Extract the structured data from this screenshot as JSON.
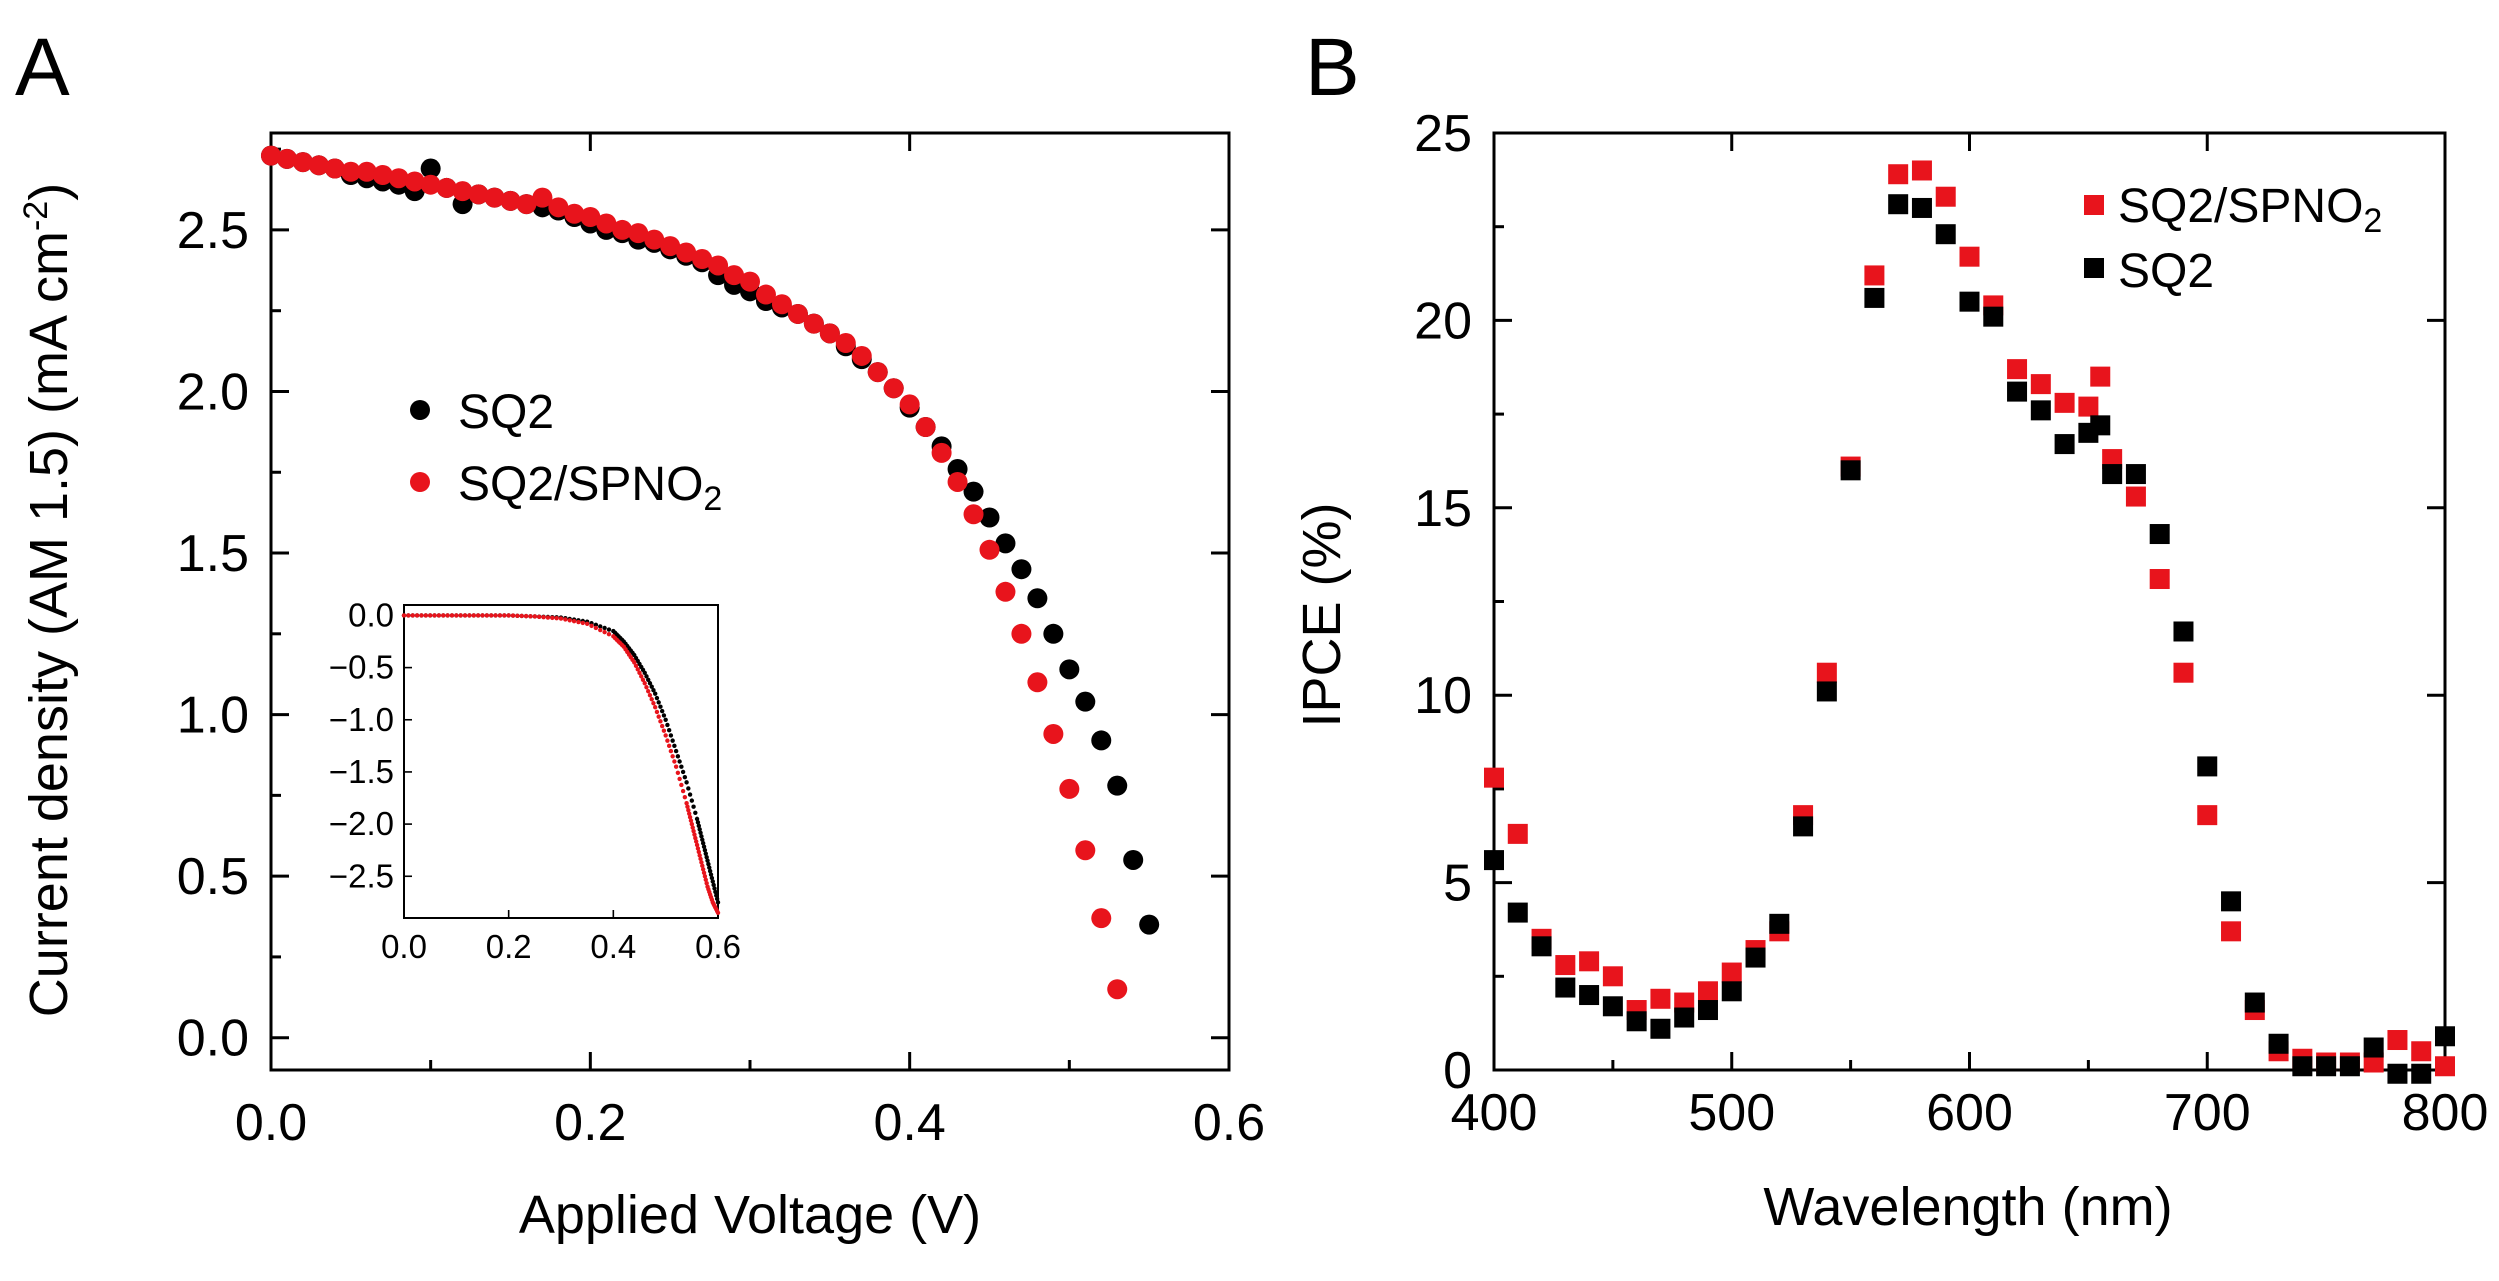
{
  "panels": [
    {
      "letter": "A"
    },
    {
      "letter": "B"
    }
  ],
  "legendA": {
    "sq2": "SQ2",
    "sq2spno2_prefix": "SQ2/SPNO",
    "sub": "2"
  },
  "legendB": {
    "sq2spno2_prefix": "SQ2/SPNO",
    "sub": "2",
    "sq2": "SQ2"
  },
  "labels": {
    "A_x": "Applied Voltage (V)",
    "A_y_prefix": "Current density (AM 1.5) (mA cm",
    "A_y_sup": "-2",
    "A_y_suffix": ")",
    "B_x": "Wavelength (nm)",
    "B_y": "IPCE (%)"
  },
  "colors": {
    "red": "#e8141c",
    "black": "#000000"
  },
  "chart_data": [
    {
      "type": "scatter",
      "panel": "A",
      "xlabel": "Applied Voltage (V)",
      "ylabel": "Current density (AM 1.5) (mA cm-2)",
      "xlim": [
        0,
        0.6
      ],
      "ylim": [
        -0.1,
        2.8
      ],
      "xticks": [
        0.0,
        0.2,
        0.4,
        0.6
      ],
      "xtick_labels": [
        "0.0",
        "0.2",
        "0.4",
        "0.6"
      ],
      "yticks": [
        0.0,
        0.5,
        1.0,
        1.5,
        2.0,
        2.5
      ],
      "ytick_labels": [
        "0.0",
        "0.5",
        "1.0",
        "1.5",
        "2.0",
        "2.5"
      ],
      "legend": [
        "SQ2",
        "SQ2/SPNO2"
      ],
      "series": [
        {
          "name": "SQ2",
          "color": "#000000",
          "x": [
            0.0,
            0.01,
            0.02,
            0.03,
            0.04,
            0.05,
            0.06,
            0.07,
            0.08,
            0.09,
            0.1,
            0.11,
            0.12,
            0.13,
            0.14,
            0.15,
            0.16,
            0.17,
            0.18,
            0.19,
            0.2,
            0.21,
            0.22,
            0.23,
            0.24,
            0.25,
            0.26,
            0.27,
            0.28,
            0.29,
            0.3,
            0.31,
            0.32,
            0.33,
            0.34,
            0.35,
            0.36,
            0.37,
            0.38,
            0.39,
            0.4,
            0.41,
            0.42,
            0.43,
            0.44,
            0.45,
            0.46,
            0.47,
            0.48,
            0.49,
            0.5,
            0.51,
            0.52,
            0.53,
            0.54,
            0.55
          ],
          "y": [
            2.73,
            2.72,
            2.71,
            2.7,
            2.69,
            2.67,
            2.66,
            2.65,
            2.64,
            2.62,
            2.69,
            2.63,
            2.58,
            2.61,
            2.6,
            2.59,
            2.58,
            2.57,
            2.56,
            2.54,
            2.52,
            2.5,
            2.49,
            2.47,
            2.46,
            2.44,
            2.42,
            2.4,
            2.36,
            2.33,
            2.31,
            2.28,
            2.26,
            2.24,
            2.21,
            2.18,
            2.14,
            2.1,
            2.06,
            2.01,
            1.95,
            1.89,
            1.83,
            1.76,
            1.69,
            1.61,
            1.53,
            1.45,
            1.36,
            1.25,
            1.14,
            1.04,
            0.92,
            0.78,
            0.55,
            0.35
          ]
        },
        {
          "name": "SQ2/SPNO2",
          "color": "#e8141c",
          "x": [
            0.0,
            0.01,
            0.02,
            0.03,
            0.04,
            0.05,
            0.06,
            0.07,
            0.08,
            0.09,
            0.1,
            0.11,
            0.12,
            0.13,
            0.14,
            0.15,
            0.16,
            0.17,
            0.18,
            0.19,
            0.2,
            0.21,
            0.22,
            0.23,
            0.24,
            0.25,
            0.26,
            0.27,
            0.28,
            0.29,
            0.3,
            0.31,
            0.32,
            0.33,
            0.34,
            0.35,
            0.36,
            0.37,
            0.38,
            0.39,
            0.4,
            0.41,
            0.42,
            0.43,
            0.44,
            0.45,
            0.46,
            0.47,
            0.48,
            0.49,
            0.5,
            0.51,
            0.52,
            0.53
          ],
          "y": [
            2.73,
            2.72,
            2.71,
            2.7,
            2.69,
            2.68,
            2.68,
            2.67,
            2.66,
            2.65,
            2.64,
            2.63,
            2.62,
            2.61,
            2.6,
            2.59,
            2.58,
            2.6,
            2.57,
            2.55,
            2.54,
            2.52,
            2.5,
            2.49,
            2.47,
            2.45,
            2.43,
            2.41,
            2.39,
            2.36,
            2.34,
            2.3,
            2.27,
            2.24,
            2.21,
            2.18,
            2.15,
            2.11,
            2.06,
            2.01,
            1.96,
            1.89,
            1.81,
            1.72,
            1.62,
            1.51,
            1.38,
            1.25,
            1.1,
            0.94,
            0.77,
            0.58,
            0.37,
            0.15
          ]
        }
      ],
      "inset": {
        "xlim": [
          0,
          0.6
        ],
        "ylim": [
          -2.9,
          0.1
        ],
        "xticks": [
          0.0,
          0.2,
          0.4,
          0.6
        ],
        "xtick_labels": [
          "0.0",
          "0.2",
          "0.4",
          "0.6"
        ],
        "yticks": [
          0.0,
          -0.5,
          -1.0,
          -1.5,
          -2.0,
          -2.5
        ],
        "ytick_labels": [
          "0.0",
          "−0.5",
          "−1.0",
          "−1.5",
          "−2.0",
          "−2.5"
        ],
        "series": [
          {
            "name": "SQ2",
            "color": "#000000",
            "x": [
              0.0,
              0.05,
              0.1,
              0.15,
              0.2,
              0.25,
              0.3,
              0.35,
              0.4,
              0.42,
              0.44,
              0.46,
              0.48,
              0.5,
              0.52,
              0.54,
              0.56,
              0.57,
              0.58,
              0.59,
              0.6
            ],
            "y": [
              0.0,
              0.0,
              0.0,
              0.0,
              0.0,
              -0.01,
              -0.02,
              -0.06,
              -0.15,
              -0.25,
              -0.38,
              -0.55,
              -0.75,
              -1.0,
              -1.3,
              -1.6,
              -1.95,
              -2.15,
              -2.35,
              -2.55,
              -2.75
            ]
          },
          {
            "name": "SQ2/SPNO2",
            "color": "#e8141c",
            "x": [
              0.0,
              0.05,
              0.1,
              0.15,
              0.2,
              0.25,
              0.3,
              0.35,
              0.4,
              0.42,
              0.44,
              0.46,
              0.48,
              0.5,
              0.52,
              0.54,
              0.55,
              0.56,
              0.57,
              0.58,
              0.59,
              0.6
            ],
            "y": [
              0.0,
              0.0,
              0.0,
              0.0,
              0.0,
              -0.01,
              -0.03,
              -0.08,
              -0.2,
              -0.3,
              -0.45,
              -0.65,
              -0.88,
              -1.15,
              -1.45,
              -1.8,
              -2.0,
              -2.2,
              -2.4,
              -2.6,
              -2.75,
              -2.85
            ]
          }
        ]
      }
    },
    {
      "type": "scatter",
      "panel": "B",
      "xlabel": "Wavelength (nm)",
      "ylabel": "IPCE (%)",
      "xlim": [
        400,
        800
      ],
      "ylim": [
        0,
        25
      ],
      "xticks": [
        400,
        500,
        600,
        700,
        800
      ],
      "xtick_labels": [
        "400",
        "500",
        "600",
        "700",
        "800"
      ],
      "yticks": [
        0,
        5,
        10,
        15,
        20,
        25
      ],
      "ytick_labels": [
        "0",
        "5",
        "10",
        "15",
        "20",
        "25"
      ],
      "legend": [
        "SQ2/SPNO2",
        "SQ2"
      ],
      "series": [
        {
          "name": "SQ2/SPNO2",
          "color": "#e8141c",
          "x": [
            400,
            410,
            420,
            430,
            440,
            450,
            460,
            470,
            480,
            490,
            500,
            510,
            520,
            530,
            540,
            550,
            560,
            570,
            580,
            590,
            600,
            610,
            620,
            630,
            640,
            650,
            655,
            660,
            670,
            680,
            690,
            700,
            710,
            720,
            730,
            740,
            750,
            760,
            770,
            780,
            790,
            800
          ],
          "y": [
            7.8,
            6.3,
            3.5,
            2.8,
            2.9,
            2.5,
            1.6,
            1.9,
            1.8,
            2.1,
            2.6,
            3.2,
            3.7,
            6.8,
            10.6,
            16.1,
            21.2,
            23.9,
            24.0,
            23.3,
            21.7,
            20.4,
            18.7,
            18.3,
            17.8,
            17.7,
            18.5,
            16.3,
            15.3,
            13.1,
            10.6,
            6.8,
            3.7,
            1.6,
            0.5,
            0.3,
            0.2,
            0.2,
            0.2,
            0.8,
            0.5,
            0.1
          ]
        },
        {
          "name": "SQ2",
          "color": "#000000",
          "x": [
            400,
            410,
            420,
            430,
            440,
            450,
            460,
            470,
            480,
            490,
            500,
            510,
            520,
            530,
            540,
            550,
            560,
            570,
            580,
            590,
            600,
            610,
            620,
            630,
            640,
            650,
            655,
            660,
            670,
            680,
            690,
            700,
            710,
            720,
            730,
            740,
            750,
            760,
            770,
            780,
            790,
            800
          ],
          "y": [
            5.6,
            4.2,
            3.3,
            2.2,
            2.0,
            1.7,
            1.3,
            1.1,
            1.4,
            1.6,
            2.1,
            3.0,
            3.9,
            6.5,
            10.1,
            16.0,
            20.6,
            23.1,
            23.0,
            22.3,
            20.5,
            20.1,
            18.1,
            17.6,
            16.7,
            17.0,
            17.2,
            15.9,
            15.9,
            14.3,
            11.7,
            8.1,
            4.5,
            1.8,
            0.7,
            0.1,
            0.1,
            0.1,
            0.6,
            -0.1,
            -0.1,
            0.9
          ]
        }
      ]
    }
  ]
}
